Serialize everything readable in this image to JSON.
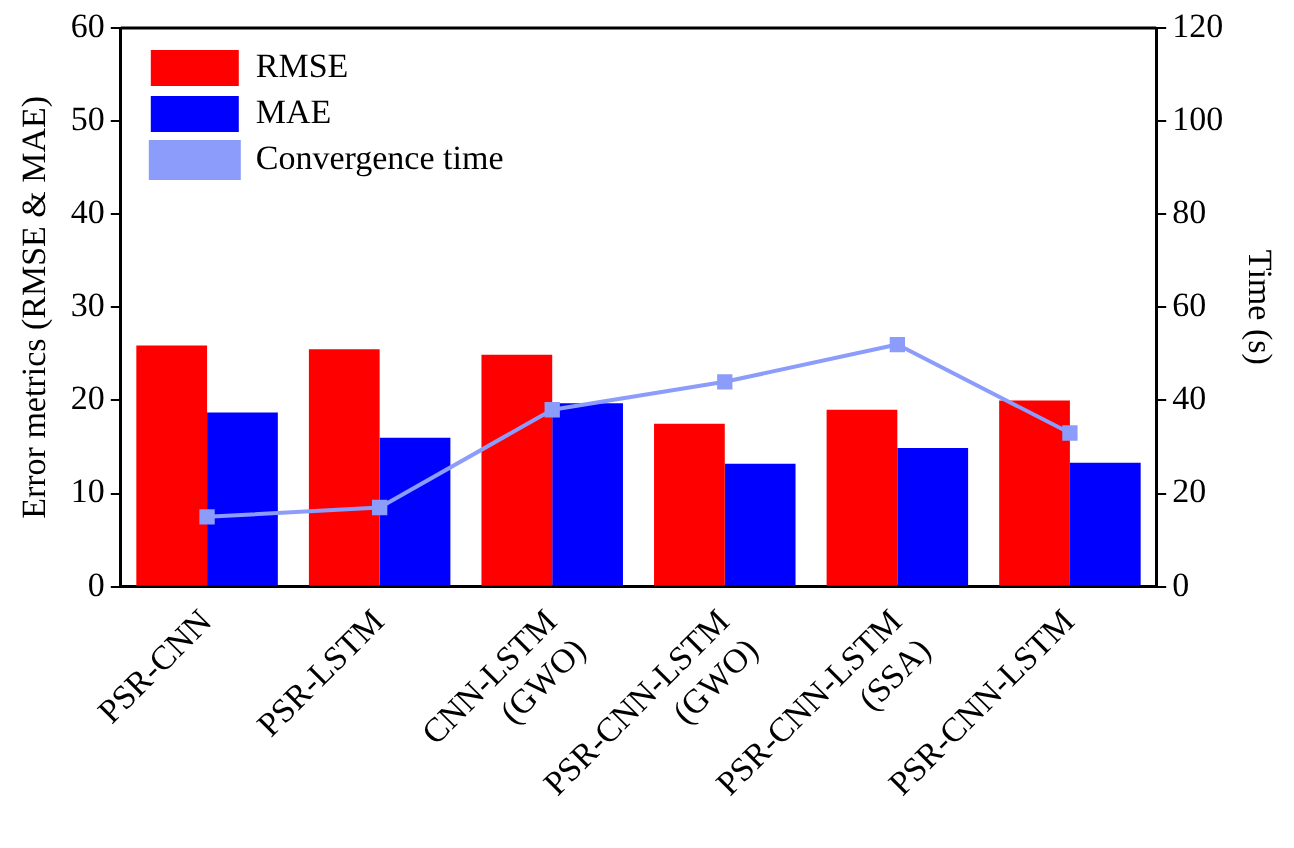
{
  "chart_data": {
    "type": "bar",
    "ylabel": "Error metrics (RMSE & MAE)",
    "y2label": "Time (s)",
    "categories": [
      "PSR-CNN",
      "PSR-LSTM",
      "CNN-LSTM\n(GWO)",
      "PSR-CNN-LSTM\n(GWO)",
      "PSR-CNN-LSTM\n(SSA)",
      "PSR-CNN-LSTM"
    ],
    "series": [
      {
        "name": "RMSE",
        "color": "#ff0000",
        "values": [
          25.9,
          25.5,
          24.9,
          17.5,
          19,
          20
        ]
      },
      {
        "name": "MAE",
        "color": "#0000ff",
        "values": [
          18.7,
          16,
          19.7,
          13.2,
          14.9,
          13.3
        ]
      },
      {
        "name": "Convergence time",
        "type": "line",
        "axis": "y2",
        "color": "#8c9cfb",
        "values": [
          15,
          17,
          38,
          44,
          52,
          33
        ]
      }
    ],
    "ylim": [
      0,
      60
    ],
    "yticks": [
      0,
      10,
      20,
      30,
      40,
      50,
      60
    ],
    "y2lim": [
      0,
      120
    ],
    "y2ticks": [
      0,
      20,
      40,
      60,
      80,
      100,
      120
    ],
    "grid": false,
    "legend": "top left",
    "marker": "square",
    "line_style": "solid"
  }
}
